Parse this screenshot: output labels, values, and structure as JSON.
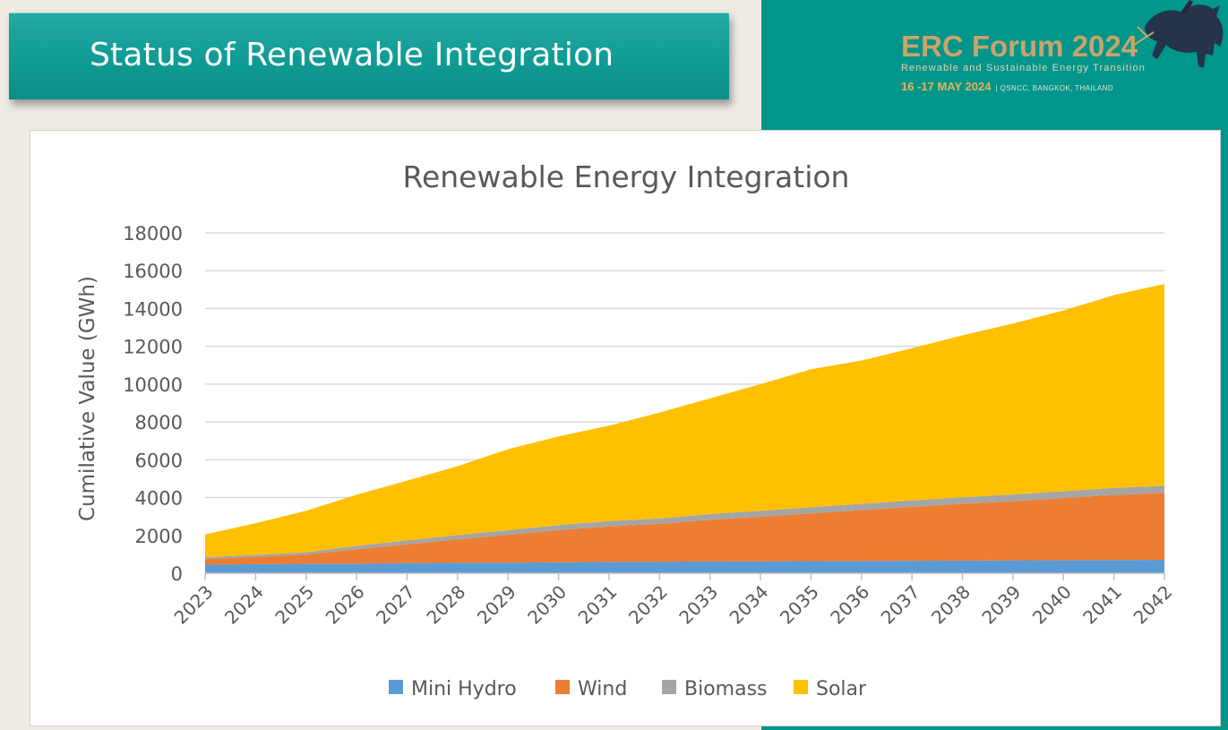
{
  "slide": {
    "title": "Status of Renewable Integration"
  },
  "event": {
    "name": "ERC Forum 2024",
    "tagline": "Renewable and Sustainable Energy Transition",
    "date": "16 -17 MAY 2024",
    "venue": "| QSNCC, BANGKOK, THAILAND"
  },
  "colors": {
    "teal": "#00968c",
    "mini_hydro": "#5b9bd5",
    "wind": "#ed7d31",
    "biomass": "#a5a5a5",
    "solar": "#ffc000"
  },
  "chart_data": {
    "type": "area",
    "stacked": true,
    "title": "Renewable Energy Integration",
    "xlabel": "",
    "ylabel": "Cumilative Value (GWh)",
    "ylim": [
      0,
      18000
    ],
    "yticks": [
      "0",
      "2000",
      "4000",
      "6000",
      "8000",
      "10000",
      "12000",
      "14000",
      "16000",
      "18000"
    ],
    "grid": true,
    "legend": "bottom",
    "categories": [
      "2023",
      "2024",
      "2025",
      "2026",
      "2027",
      "2028",
      "2029",
      "2030",
      "2031",
      "2032",
      "2033",
      "2034",
      "2035",
      "2036",
      "2037",
      "2038",
      "2039",
      "2040",
      "2041",
      "2042"
    ],
    "series": [
      {
        "name": "Mini Hydro",
        "color": "#5b9bd5",
        "values": [
          450,
          480,
          500,
          510,
          530,
          550,
          560,
          580,
          600,
          610,
          620,
          630,
          640,
          650,
          660,
          670,
          680,
          690,
          700,
          710
        ]
      },
      {
        "name": "Wind",
        "color": "#ed7d31",
        "values": [
          300,
          380,
          480,
          760,
          1000,
          1240,
          1470,
          1700,
          1880,
          2000,
          2210,
          2360,
          2530,
          2690,
          2850,
          3000,
          3130,
          3290,
          3440,
          3540
        ]
      },
      {
        "name": "Biomass",
        "color": "#a5a5a5",
        "values": [
          100,
          110,
          130,
          180,
          210,
          230,
          250,
          270,
          280,
          290,
          300,
          310,
          320,
          330,
          340,
          350,
          360,
          360,
          370,
          380
        ]
      },
      {
        "name": "Solar",
        "color": "#ffc000",
        "values": [
          1200,
          1680,
          2190,
          2700,
          3160,
          3640,
          4280,
          4690,
          5040,
          5600,
          6120,
          6700,
          7300,
          7580,
          8050,
          8560,
          9030,
          9560,
          10200,
          10670
        ]
      }
    ]
  }
}
